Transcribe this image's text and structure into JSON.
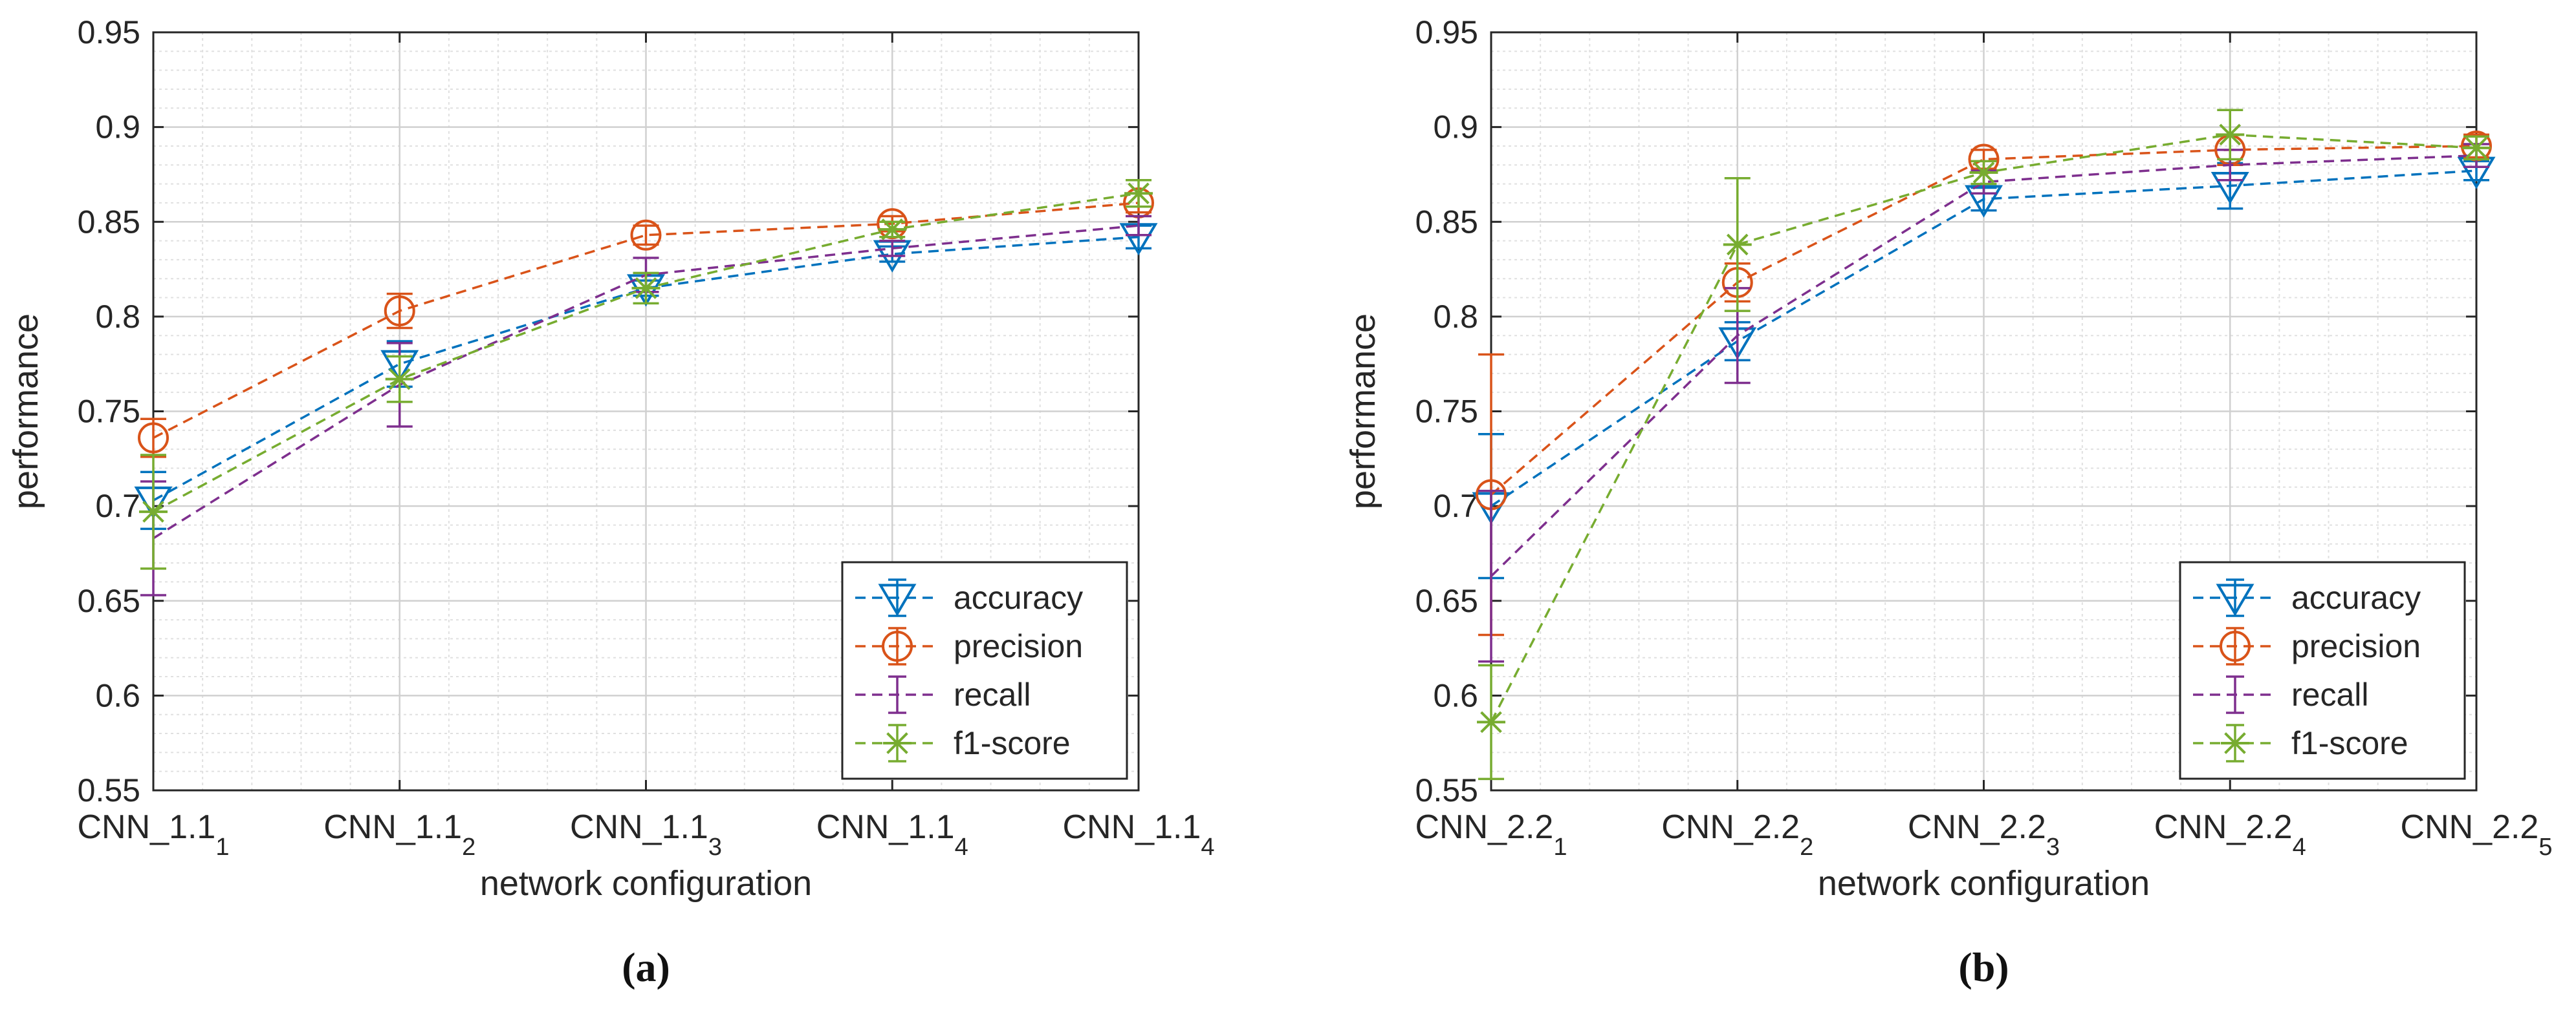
{
  "figure": {
    "colors": {
      "accuracy": "#0072BD",
      "precision": "#D95319",
      "recall": "#7E2F8E",
      "f1": "#77AC30",
      "major_grid": "#d0d0d0",
      "minor_grid": "#e0e0e0"
    }
  },
  "chart_data": [
    {
      "type": "line",
      "panel_label": "(a)",
      "xlabel": "network configuration",
      "ylabel": "performance",
      "ylim": [
        0.55,
        0.95
      ],
      "yticks": [
        "0.55",
        "0.6",
        "0.65",
        "0.7",
        "0.75",
        "0.8",
        "0.85",
        "0.9",
        "0.95"
      ],
      "grid": true,
      "minor_grid": true,
      "legend_position": "bottom-right",
      "categories": [
        {
          "base": "CNN_1.1",
          "sub": "1"
        },
        {
          "base": "CNN_1.1",
          "sub": "2"
        },
        {
          "base": "CNN_1.1",
          "sub": "3"
        },
        {
          "base": "CNN_1.1",
          "sub": "4"
        },
        {
          "base": "CNN_1.1",
          "sub": "4"
        }
      ],
      "series": [
        {
          "name": "accuracy",
          "key": "accuracy",
          "marker": "triangle-down",
          "values": [
            0.703,
            0.775,
            0.815,
            0.833,
            0.842
          ],
          "errors": [
            0.015,
            0.012,
            0.004,
            0.004,
            0.006
          ]
        },
        {
          "name": "precision",
          "key": "precision",
          "marker": "circle",
          "values": [
            0.736,
            0.803,
            0.843,
            0.849,
            0.86
          ],
          "errors": [
            0.01,
            0.009,
            0.005,
            0.004,
            0.005
          ]
        },
        {
          "name": "recall",
          "key": "recall",
          "marker": "none",
          "values": [
            0.683,
            0.764,
            0.822,
            0.836,
            0.848
          ],
          "errors": [
            0.03,
            0.022,
            0.009,
            0.004,
            0.005
          ]
        },
        {
          "name": "f1-score",
          "key": "f1",
          "marker": "asterisk",
          "values": [
            0.697,
            0.767,
            0.815,
            0.846,
            0.865
          ],
          "errors": [
            0.03,
            0.012,
            0.008,
            0.004,
            0.007
          ]
        }
      ]
    },
    {
      "type": "line",
      "panel_label": "(b)",
      "xlabel": "network configuration",
      "ylabel": "performance",
      "ylim": [
        0.55,
        0.95
      ],
      "yticks": [
        "0.55",
        "0.6",
        "0.65",
        "0.7",
        "0.75",
        "0.8",
        "0.85",
        "0.9",
        "0.95"
      ],
      "grid": true,
      "minor_grid": true,
      "legend_position": "bottom-right",
      "categories": [
        {
          "base": "CNN_2.2",
          "sub": "1"
        },
        {
          "base": "CNN_2.2",
          "sub": "2"
        },
        {
          "base": "CNN_2.2",
          "sub": "3"
        },
        {
          "base": "CNN_2.2",
          "sub": "4"
        },
        {
          "base": "CNN_2.2",
          "sub": "5"
        }
      ],
      "series": [
        {
          "name": "accuracy",
          "key": "accuracy",
          "marker": "triangle-down",
          "values": [
            0.7,
            0.787,
            0.862,
            0.869,
            0.877
          ],
          "errors": [
            0.038,
            0.01,
            0.006,
            0.012,
            0.005
          ]
        },
        {
          "name": "precision",
          "key": "precision",
          "marker": "circle",
          "values": [
            0.706,
            0.818,
            0.883,
            0.888,
            0.89
          ],
          "errors": [
            0.074,
            0.01,
            0.005,
            0.008,
            0.006
          ]
        },
        {
          "name": "recall",
          "key": "recall",
          "marker": "none",
          "values": [
            0.663,
            0.79,
            0.871,
            0.88,
            0.885
          ],
          "errors": [
            0.045,
            0.025,
            0.006,
            0.008,
            0.006
          ]
        },
        {
          "name": "f1-score",
          "key": "f1",
          "marker": "asterisk",
          "values": [
            0.586,
            0.838,
            0.876,
            0.896,
            0.889
          ],
          "errors": [
            0.03,
            0.035,
            0.006,
            0.013,
            0.006
          ]
        }
      ]
    }
  ]
}
